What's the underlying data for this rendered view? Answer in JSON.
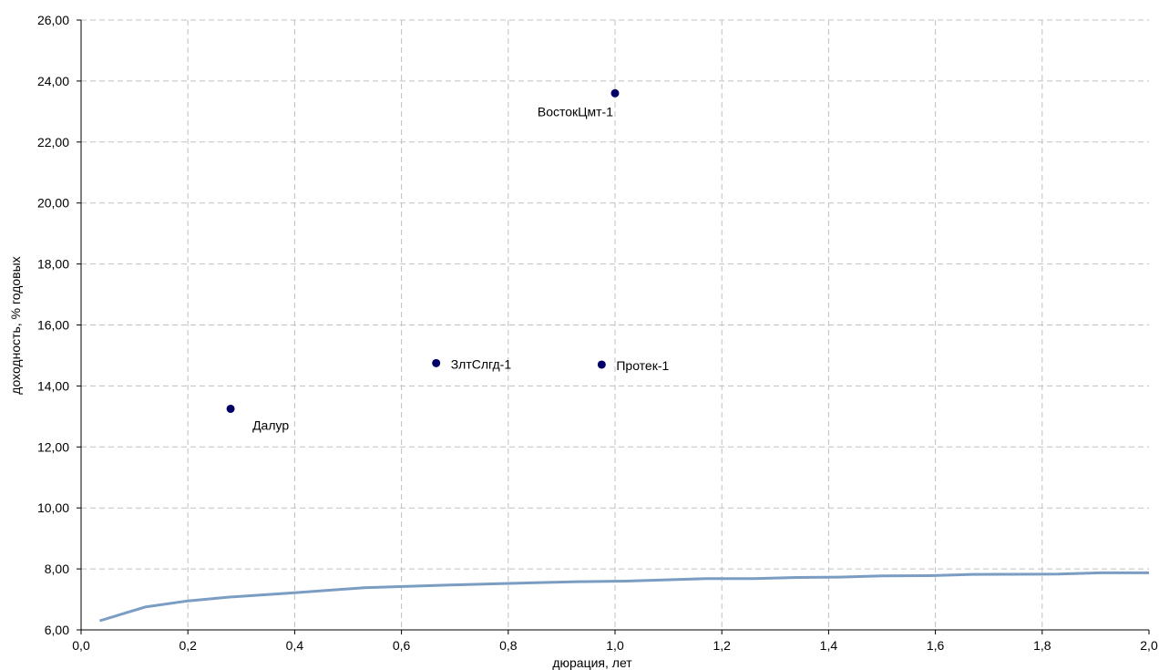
{
  "chart_data": {
    "type": "scatter",
    "xlabel": "дюрация, лет",
    "ylabel": "доходность, % годовых",
    "xlim": [
      0,
      2
    ],
    "ylim": [
      6,
      26
    ],
    "x_ticks": [
      "0,0",
      "0,2",
      "0,4",
      "0,6",
      "0,8",
      "1,0",
      "1,2",
      "1,4",
      "1,6",
      "1,8",
      "2,0"
    ],
    "y_ticks": [
      "6,00",
      "8,00",
      "10,00",
      "12,00",
      "14,00",
      "16,00",
      "18,00",
      "20,00",
      "22,00",
      "24,00",
      "26,00"
    ],
    "grid": true,
    "colors": {
      "points": "#000066",
      "curve": "#7b9dc4"
    },
    "series": [
      {
        "type": "scatter",
        "points": [
          {
            "x": 0.28,
            "y": 13.25,
            "label": "Далур"
          },
          {
            "x": 0.665,
            "y": 14.75,
            "label": "ЗлтСлгд-1"
          },
          {
            "x": 0.975,
            "y": 14.7,
            "label": "Протек-1"
          },
          {
            "x": 1.0,
            "y": 23.6,
            "label": "ВостокЦмт-1"
          }
        ]
      },
      {
        "type": "line",
        "x": [
          0.035,
          0.12,
          0.2,
          0.28,
          0.4,
          0.53,
          0.69,
          0.85,
          0.93,
          1.02,
          1.17,
          1.26,
          1.34,
          1.42,
          1.5,
          1.59,
          1.67,
          1.83,
          1.91,
          2.0
        ],
        "y": [
          6.3,
          6.75,
          6.95,
          7.08,
          7.22,
          7.38,
          7.47,
          7.55,
          7.58,
          7.6,
          7.68,
          7.68,
          7.72,
          7.73,
          7.77,
          7.78,
          7.82,
          7.83,
          7.87,
          7.87
        ]
      }
    ]
  }
}
